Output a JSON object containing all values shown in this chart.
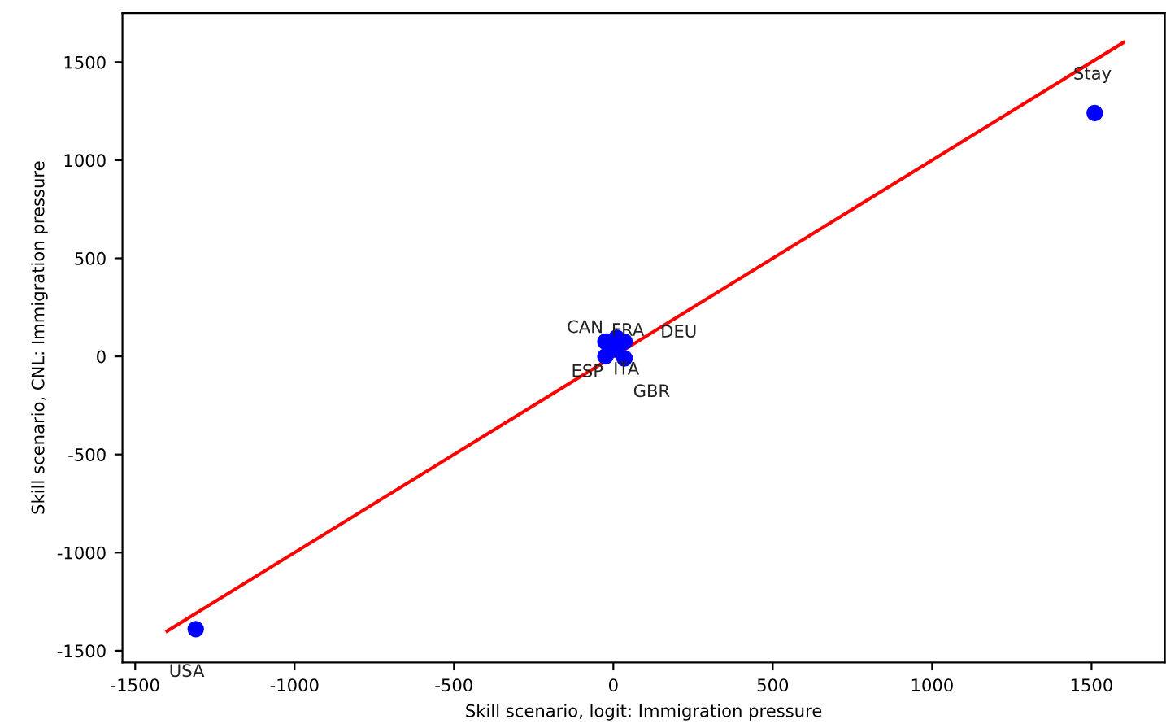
{
  "chart_data": {
    "type": "scatter",
    "xlabel": "Skill scenario, logit: Immigration pressure",
    "ylabel": "Skill scenario, CNL: Immigration pressure",
    "xlim": [
      -1540,
      1730
    ],
    "ylim": [
      -1560,
      1750
    ],
    "xticks": [
      -1500,
      -1000,
      -500,
      0,
      500,
      1000,
      1500
    ],
    "yticks": [
      -1500,
      -1000,
      -500,
      0,
      500,
      1000,
      1500
    ],
    "grid": false,
    "series": [
      {
        "color": "#0000ff",
        "marker": "circle",
        "x": [
          -1310,
          1510,
          -25,
          10,
          35,
          -25,
          5,
          35
        ],
        "values": [
          -1390,
          1240,
          75,
          95,
          75,
          0,
          35,
          -10
        ]
      },
      {
        "type": "line",
        "color": "#ff0000",
        "x": [
          -1400,
          1600
        ],
        "values": [
          -1400,
          1600
        ]
      }
    ],
    "annotations": [
      {
        "text": "USA",
        "x": -1310,
        "y": -1390
      },
      {
        "text": "Stay",
        "x": 1510,
        "y": 1240
      },
      {
        "text": "CAN",
        "x": -25,
        "y": 75
      },
      {
        "text": "FRA",
        "x": 10,
        "y": 95
      },
      {
        "text": "DEU",
        "x": 35,
        "y": 75
      },
      {
        "text": "ESP",
        "x": -25,
        "y": 0
      },
      {
        "text": "ITA",
        "x": 5,
        "y": 35
      },
      {
        "text": "GBR",
        "x": 35,
        "y": -10
      }
    ]
  }
}
